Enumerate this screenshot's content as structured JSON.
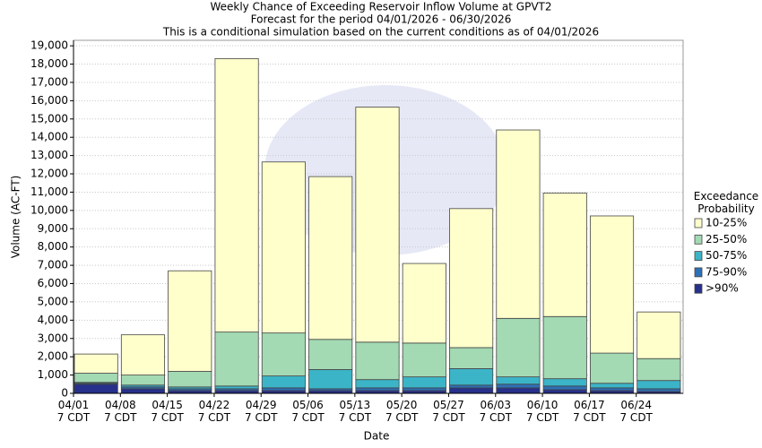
{
  "chart_data": {
    "type": "stacked_bar",
    "title": "Weekly Chance of Exceeding Reservoir Inflow Volume at GPVT2",
    "subtitle": "Forecast for the period 04/01/2026 - 06/30/2026",
    "note": "This is a conditional simulation based on the current conditions as of 04/01/2026",
    "x_label": "Date",
    "y_label": "Volume (AC-FT)",
    "legend_title": "Exceedance Probability",
    "categories": [
      "04/01\n7 CDT",
      "04/08\n7 CDT",
      "04/15\n7 CDT",
      "04/22\n7 CDT",
      "04/29\n7 CDT",
      "05/06\n7 CDT",
      "05/13\n7 CDT",
      "05/20\n7 CDT",
      "05/27\n7 CDT",
      "06/03\n7 CDT",
      "06/10\n7 CDT",
      "06/17\n7 CDT",
      "06/24\n7 CDT"
    ],
    "series": [
      {
        "name": ">90%",
        "color": "#27308a",
        "values": [
          500,
          250,
          150,
          150,
          150,
          150,
          150,
          150,
          300,
          300,
          200,
          150,
          100
        ]
      },
      {
        "name": "75-90%",
        "color": "#2e6fb6",
        "values": [
          50,
          100,
          100,
          100,
          150,
          100,
          150,
          150,
          150,
          200,
          200,
          150,
          150
        ]
      },
      {
        "name": "50-75%",
        "color": "#3cb4c8",
        "values": [
          50,
          100,
          100,
          150,
          650,
          1050,
          450,
          600,
          900,
          400,
          400,
          250,
          450
        ]
      },
      {
        "name": "25-50%",
        "color": "#a3d9b3",
        "values": [
          500,
          550,
          850,
          2950,
          2350,
          1650,
          2050,
          1850,
          1150,
          3200,
          3400,
          1650,
          1200
        ]
      },
      {
        "name": "10-25%",
        "color": "#ffffcc",
        "values": [
          1050,
          2200,
          5500,
          14950,
          9350,
          8900,
          12850,
          4350,
          7600,
          10300,
          6750,
          7500,
          2550
        ]
      }
    ],
    "ylim": [
      0,
      19300
    ],
    "yticks": [
      0,
      {
        "value": 1000,
        "label": "1,000"
      },
      {
        "value": 2000,
        "label": "2,000"
      },
      {
        "value": 3000,
        "label": "3,000"
      },
      {
        "value": 4000,
        "label": "4,000"
      },
      {
        "value": 5000,
        "label": "5,000"
      },
      {
        "value": 6000,
        "label": "6,000"
      },
      {
        "value": 7000,
        "label": "7,000"
      },
      {
        "value": 8000,
        "label": "8,000"
      },
      {
        "value": 9000,
        "label": "9,000"
      },
      {
        "value": 10000,
        "label": "10,000"
      },
      {
        "value": 11000,
        "label": "11,000"
      },
      {
        "value": 12000,
        "label": "12,000"
      },
      {
        "value": 13000,
        "label": "13,000"
      },
      {
        "value": 14000,
        "label": "14,000"
      },
      {
        "value": 15000,
        "label": "15,000"
      },
      {
        "value": 16000,
        "label": "16,000"
      },
      {
        "value": 17000,
        "label": "17,000"
      },
      {
        "value": 18000,
        "label": "18,000"
      },
      {
        "value": 19000,
        "label": "19,000"
      }
    ],
    "grid": true
  }
}
